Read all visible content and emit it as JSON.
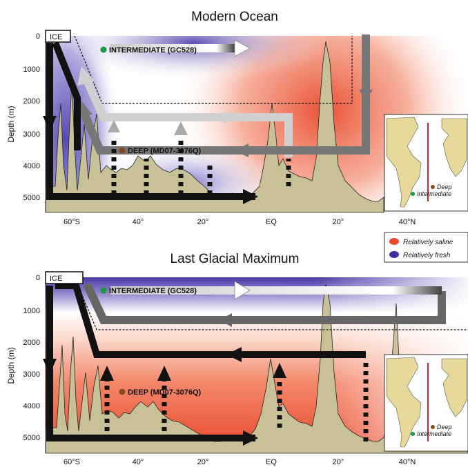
{
  "panels": [
    {
      "title": "Modern Ocean",
      "ylabel": "Depth (m)",
      "ice_label": "ICE",
      "intermediate_label": "INTERMEDIATE (GC528)",
      "deep_label": "DEEP (MD07-3076Q)",
      "y_ticks": [
        "0",
        "1000",
        "2000",
        "3000",
        "4000",
        "5000"
      ],
      "x_ticks": [
        "60°S",
        "40°",
        "20°",
        "EQ",
        "20°",
        "40°N"
      ],
      "map_labels": {
        "deep": "Deep",
        "intermediate": "Intermediate"
      }
    },
    {
      "title": "Last Glacial Maximum",
      "ylabel": "Depth (m)",
      "ice_label": "ICE",
      "intermediate_label": "INTERMEDIATE (GC528)",
      "deep_label": "DEEP (MD07-3076Q)",
      "y_ticks": [
        "0",
        "1000",
        "2000",
        "3000",
        "4000",
        "5000"
      ],
      "x_ticks": [
        "60°S",
        "40°",
        "20°",
        "EQ",
        "20°",
        "40°N"
      ],
      "map_labels": {
        "deep": "Deep",
        "intermediate": "Intermediate"
      }
    }
  ],
  "legend": {
    "saline": "Relatively saline",
    "fresh": "Relatively fresh",
    "saline_color": "#e8472a",
    "fresh_color": "#3b2fa0"
  },
  "colors": {
    "seafloor": "#c8c096",
    "intermediate_core": "#1a9a4a",
    "deep_core": "#8a4a1e",
    "transect": "#d42020",
    "land": "#e6d99a"
  }
}
